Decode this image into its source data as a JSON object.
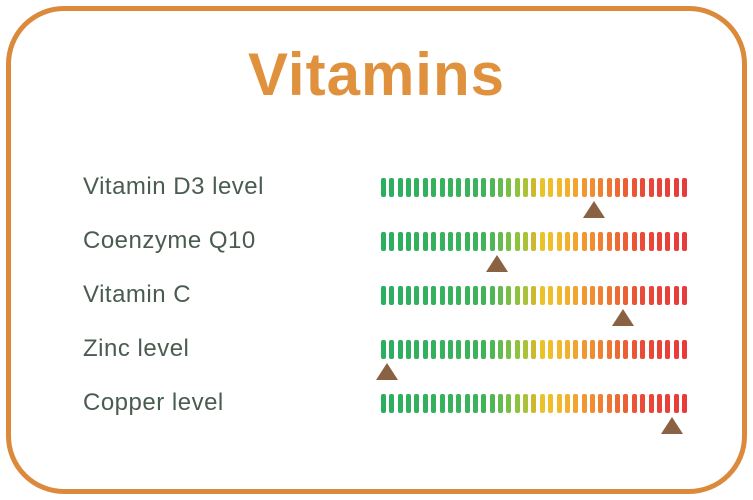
{
  "card": {
    "title": "Vitamins"
  },
  "colors": {
    "border": "#DB8A3C",
    "title": "#E0913E",
    "label": "#4A5C50",
    "marker": "#8A6243",
    "background": "#FFFFFF"
  },
  "gauge": {
    "tick_count": 37,
    "gradient_stops": [
      {
        "p": 0.0,
        "c": "#2BAE60"
      },
      {
        "p": 0.34,
        "c": "#3FB35A"
      },
      {
        "p": 0.4,
        "c": "#6CBB4B"
      },
      {
        "p": 0.46,
        "c": "#9AC63C"
      },
      {
        "p": 0.5,
        "c": "#CDB92E"
      },
      {
        "p": 0.53,
        "c": "#EFC32B"
      },
      {
        "p": 0.6,
        "c": "#F3B52C"
      },
      {
        "p": 0.66,
        "c": "#F29A2F"
      },
      {
        "p": 0.73,
        "c": "#EF7E32"
      },
      {
        "p": 0.8,
        "c": "#EC6135"
      },
      {
        "p": 0.87,
        "c": "#E94838"
      },
      {
        "p": 1.0,
        "c": "#E73B3B"
      }
    ]
  },
  "rows": [
    {
      "label": "Vitamin D3 level",
      "marker_percent": 69.5
    },
    {
      "label": "Coenzyme Q10",
      "marker_percent": 38
    },
    {
      "label": "Vitamin C",
      "marker_percent": 79
    },
    {
      "label": "Zinc level",
      "marker_percent": 2
    },
    {
      "label": "Copper level",
      "marker_percent": 95
    }
  ],
  "chart_data": {
    "type": "bar",
    "title": "Vitamins",
    "categories": [
      "Vitamin D3 level",
      "Coenzyme Q10",
      "Vitamin C",
      "Zinc level",
      "Copper level"
    ],
    "values": [
      69.5,
      38,
      79,
      2,
      95
    ],
    "xlabel": "",
    "ylabel": "",
    "axis_range": [
      0,
      100
    ],
    "legend": false,
    "notes": "Each row is a fixed green-to-red tick gauge; value = triangle marker position as percent of gauge length"
  }
}
